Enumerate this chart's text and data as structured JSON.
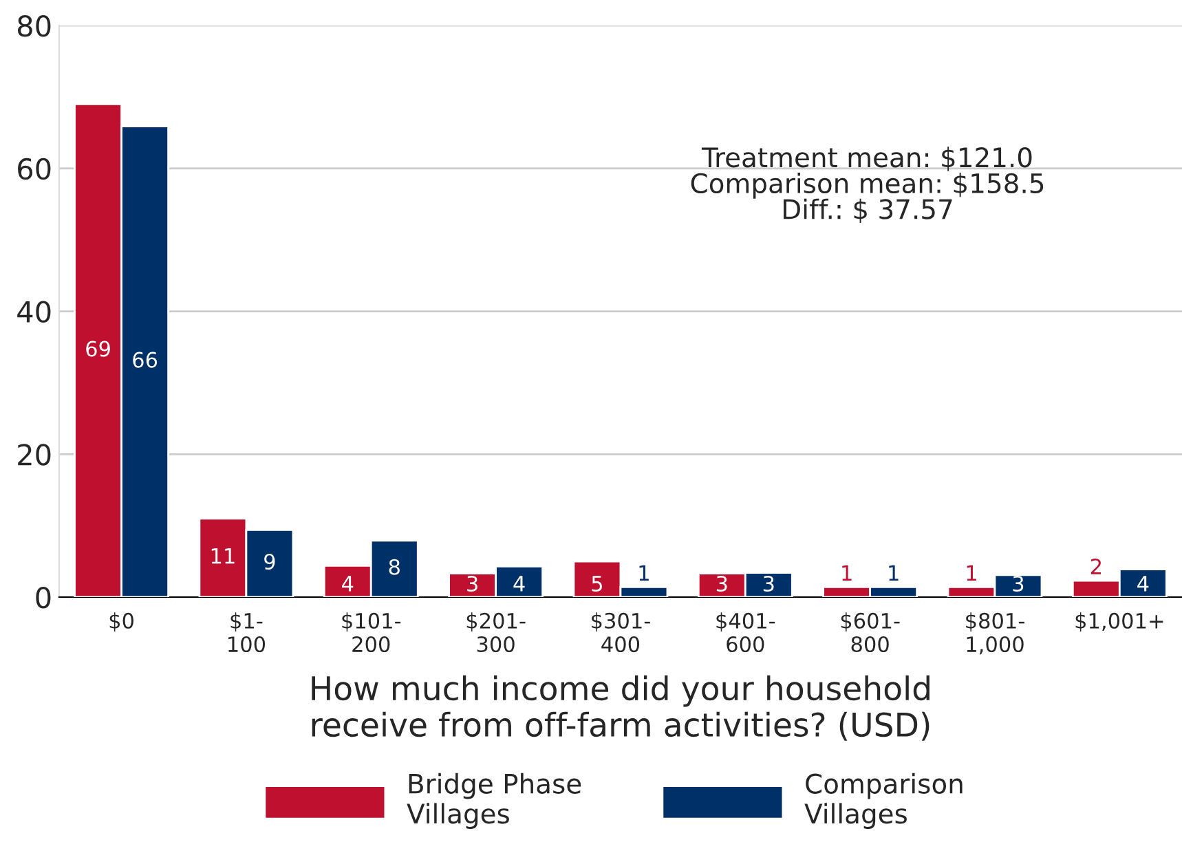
{
  "chart_data": {
    "type": "bar",
    "categories": [
      "$0",
      "$1-\n100",
      "$101-\n200",
      "$201-\n300",
      "$301-\n400",
      "$401-\n600",
      "$601-\n800",
      "$801-\n1,000",
      "$1,001+"
    ],
    "series": [
      {
        "name": "Bridge Phase\nVillages",
        "color": "#c0102f",
        "values": [
          69.0,
          11.0,
          4.4,
          3.3,
          5.0,
          3.3,
          1.4,
          1.4,
          2.3
        ],
        "value_labels": [
          "69",
          "11",
          "4",
          "3",
          "5",
          "3",
          "1",
          "1",
          "2"
        ]
      },
      {
        "name": "Comparison\nVillages",
        "color": "#003068",
        "values": [
          65.9,
          9.4,
          7.9,
          4.3,
          1.4,
          3.4,
          1.4,
          3.1,
          3.9
        ],
        "value_labels": [
          "66",
          "9",
          "8",
          "4",
          "1",
          "3",
          "1",
          "3",
          "4"
        ]
      }
    ],
    "xlabel": "How much income did your household\nreceive from off-farm activities? (USD)",
    "ylim": [
      0,
      80
    ],
    "yticks": [
      0,
      20,
      40,
      60,
      80
    ],
    "grid": "y",
    "legend": "bottom",
    "annotations": [
      "Treatment mean: $121.0\nComparison mean: $158.5\nDiff.: $ 37.57"
    ]
  }
}
